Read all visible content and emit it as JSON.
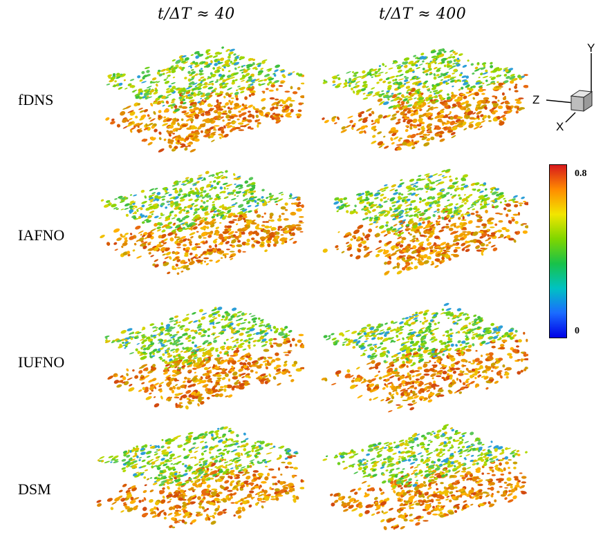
{
  "columns": [
    {
      "label": "t/ΔT ≈ 40"
    },
    {
      "label": "t/ΔT ≈ 400"
    }
  ],
  "rows": [
    {
      "label": "fDNS"
    },
    {
      "label": "IAFNO"
    },
    {
      "label": "IUFNO"
    },
    {
      "label": "DSM"
    }
  ],
  "axes_triad": {
    "x_label": "X",
    "y_label": "Y",
    "z_label": "Z"
  },
  "colorbar": {
    "max_label": "0.8",
    "min_label": "0",
    "colors": [
      "#d7191c",
      "#ff8c00",
      "#f2e600",
      "#7fd600",
      "#18c24a",
      "#00c2c2",
      "#1a6cff",
      "#0000e6"
    ]
  }
}
